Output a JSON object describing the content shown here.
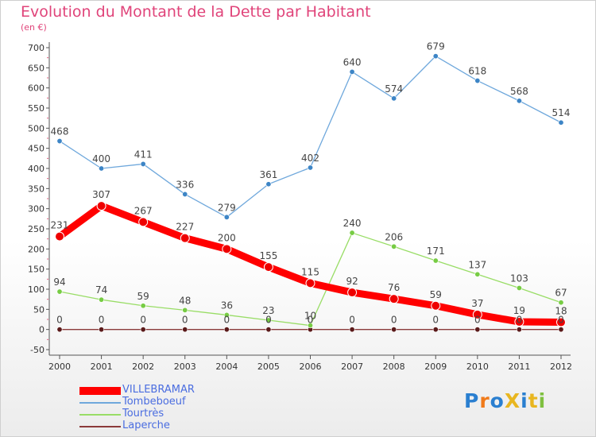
{
  "header": {
    "title": "Evolution du Montant de la Dette par Habitant",
    "subtitle": "(en €)"
  },
  "logo": {
    "text": "ProXiti",
    "letters": [
      {
        "ch": "P",
        "color": "#2a7fd0"
      },
      {
        "ch": "r",
        "color": "#f07a1a"
      },
      {
        "ch": "o",
        "color": "#2a7fd0"
      },
      {
        "ch": "X",
        "color": "#e8b620"
      },
      {
        "ch": "i",
        "color": "#2a7fd0"
      },
      {
        "ch": "t",
        "color": "#e8b620"
      },
      {
        "ch": "i",
        "color": "#7fc040"
      }
    ]
  },
  "chart_data": {
    "type": "line",
    "x": [
      "2000",
      "2001",
      "2002",
      "2003",
      "2004",
      "2005",
      "2006",
      "2007",
      "2008",
      "2009",
      "2010",
      "2011",
      "2012"
    ],
    "ylim": [
      -50,
      700
    ],
    "yticks": [
      -50,
      0,
      50,
      100,
      150,
      200,
      250,
      300,
      350,
      400,
      450,
      500,
      550,
      600,
      650,
      700
    ],
    "grid": false,
    "legend_position": "bottom-left",
    "series": [
      {
        "name": "VILLEBRAMAR",
        "color": "#ff0000",
        "marker": "#ee0000",
        "values": [
          231,
          307,
          267,
          227,
          200,
          155,
          115,
          92,
          76,
          59,
          37,
          19,
          18
        ]
      },
      {
        "name": "Tombeboeuf",
        "color": "#6fa8dc",
        "marker": "#3d85c6",
        "values": [
          468,
          400,
          411,
          336,
          279,
          361,
          402,
          640,
          574,
          679,
          618,
          568,
          514
        ]
      },
      {
        "name": "Tourtrès",
        "color": "#99dd66",
        "marker": "#77cc44",
        "values": [
          94,
          74,
          59,
          48,
          36,
          23,
          10,
          240,
          206,
          171,
          137,
          103,
          67
        ]
      },
      {
        "name": "Laperche",
        "color": "#8b3a3a",
        "marker": "#5a1a1a",
        "values": [
          0,
          0,
          0,
          0,
          0,
          0,
          0,
          0,
          0,
          0,
          0,
          0,
          0
        ]
      }
    ]
  }
}
